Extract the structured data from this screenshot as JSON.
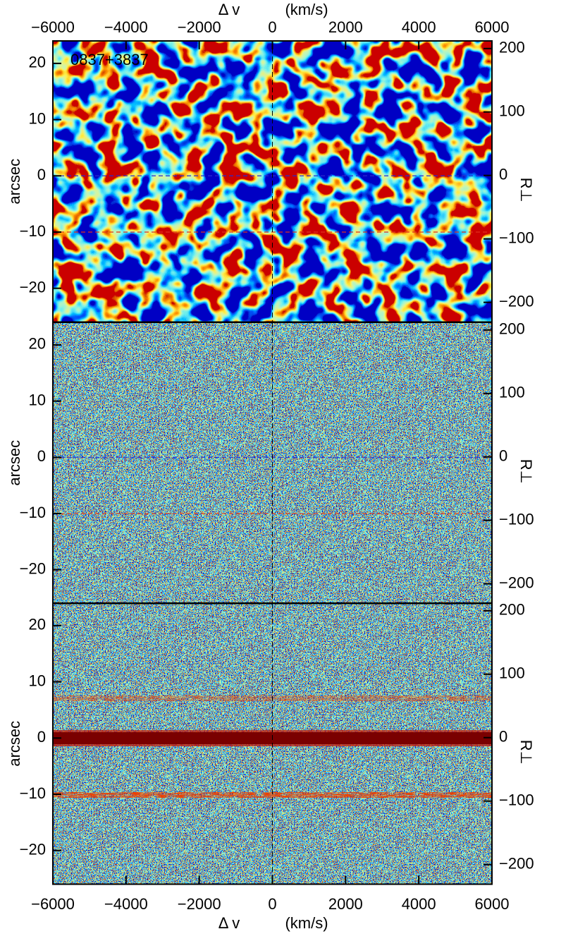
{
  "chart_data": [
    {
      "type": "heatmap",
      "annotation": "0837+3837",
      "xlim": [
        -6000,
        6000
      ],
      "xticks": [
        {
          "value": -6000,
          "label": "−6000"
        },
        {
          "value": -4000,
          "label": "−4000"
        },
        {
          "value": -2000,
          "label": "−2000"
        },
        0,
        2000,
        4000,
        6000
      ],
      "xlabel": [
        "Δ v",
        "(km/s)"
      ],
      "xaxis": "top",
      "ylabel": "arcsec",
      "ylim": [
        -26,
        24
      ],
      "yticks": [
        {
          "value": -20,
          "label": "−20"
        },
        {
          "value": -10,
          "label": "−10"
        },
        0,
        10,
        20
      ],
      "y2label": "R⊥",
      "y2lim": [
        -231,
        212
      ],
      "y2ticks": [
        {
          "value": -200,
          "label": "−200"
        },
        {
          "value": -100,
          "label": "−100"
        },
        0,
        100,
        200
      ],
      "hlines": [
        {
          "value": 0,
          "color": "#2a2ad0"
        },
        {
          "value": -10,
          "color": "#e0301c"
        }
      ],
      "vlines": [
        {
          "value": 0,
          "color": "#000000"
        }
      ]
    },
    {
      "type": "heatmap",
      "xlim": [
        -6000,
        6000
      ],
      "ylabel": "arcsec",
      "ylim": [
        -26,
        24
      ],
      "yticks": [
        {
          "value": -20,
          "label": "−20"
        },
        {
          "value": -10,
          "label": "−10"
        },
        0,
        10,
        20
      ],
      "y2label": "R⊥",
      "y2lim": [
        -231,
        212
      ],
      "y2ticks": [
        {
          "value": -200,
          "label": "−200"
        },
        {
          "value": -100,
          "label": "−100"
        },
        0,
        100,
        200
      ],
      "hlines": [
        {
          "value": 0,
          "color": "#2a2ad0"
        },
        {
          "value": -10,
          "color": "#e0301c"
        }
      ],
      "vlines": [
        {
          "value": 0,
          "color": "#000000"
        }
      ]
    },
    {
      "type": "heatmap",
      "xlim": [
        -6000,
        6000
      ],
      "xticks": [
        {
          "value": -6000,
          "label": "−6000"
        },
        {
          "value": -4000,
          "label": "−4000"
        },
        {
          "value": -2000,
          "label": "−2000"
        },
        0,
        2000,
        4000,
        6000
      ],
      "xlabel": [
        "Δ v",
        "(km/s)"
      ],
      "xaxis": "bottom",
      "ylabel": "arcsec",
      "ylim": [
        -26,
        24
      ],
      "yticks": [
        {
          "value": -20,
          "label": "−20"
        },
        {
          "value": -10,
          "label": "−10"
        },
        0,
        10,
        20
      ],
      "y2label": "R⊥",
      "y2lim": [
        -231,
        212
      ],
      "y2ticks": [
        {
          "value": -200,
          "label": "−200"
        },
        {
          "value": -100,
          "label": "−100"
        },
        0,
        100,
        200
      ],
      "vlines": [
        {
          "value": 0,
          "color": "#000000"
        }
      ]
    }
  ]
}
